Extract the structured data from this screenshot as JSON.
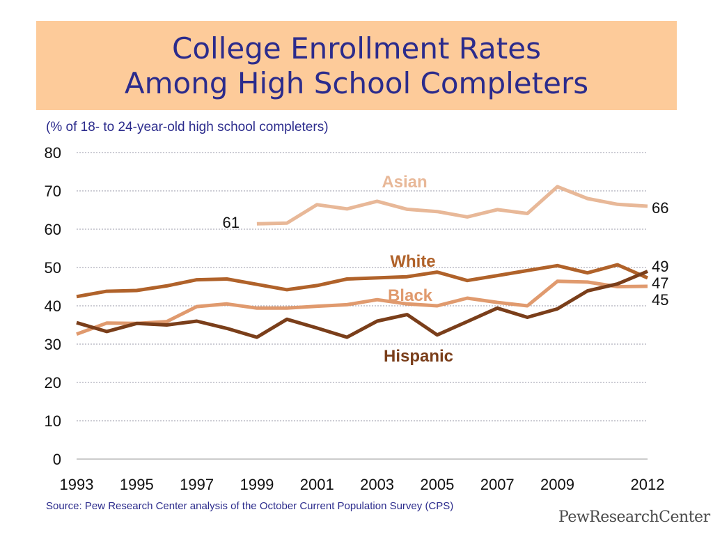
{
  "header": {
    "title_line1": "College Enrollment Rates",
    "title_line2": "Among High School Completers",
    "subtitle": "(% of 18- to 24-year-old high school completers)"
  },
  "footer": {
    "source": "Source: Pew Research Center analysis of the October Current Population Survey (CPS)",
    "logo": "PewResearchCenter"
  },
  "chart_data": {
    "type": "line",
    "x": [
      1993,
      1994,
      1995,
      1996,
      1997,
      1998,
      1999,
      2000,
      2001,
      2002,
      2003,
      2004,
      2005,
      2006,
      2007,
      2008,
      2009,
      2010,
      2011,
      2012
    ],
    "x_tick_labels": [
      {
        "x": 1993,
        "label": "1993"
      },
      {
        "x": 1995,
        "label": "1995"
      },
      {
        "x": 1997,
        "label": "1997"
      },
      {
        "x": 1999,
        "label": "1999"
      },
      {
        "x": 2001,
        "label": "2001"
      },
      {
        "x": 2003,
        "label": "2003"
      },
      {
        "x": 2005,
        "label": "2005"
      },
      {
        "x": 2007,
        "label": "2007"
      },
      {
        "x": 2009,
        "label": "2009"
      },
      {
        "x": 2012,
        "label": "2012"
      }
    ],
    "y_ticks": [
      0,
      10,
      20,
      30,
      40,
      50,
      60,
      70,
      80
    ],
    "ylim": [
      0,
      80
    ],
    "grid": true,
    "series": [
      {
        "name": "Asian",
        "color": "#e8b898",
        "values": [
          null,
          null,
          null,
          null,
          null,
          null,
          61.4,
          61.6,
          66.4,
          65.3,
          67.3,
          65.2,
          64.6,
          63.2,
          65.1,
          64.1,
          71.1,
          68.0,
          66.5,
          66.0
        ],
        "start_label": "61",
        "end_label": "66"
      },
      {
        "name": "White",
        "color": "#b0622a",
        "values": [
          42.4,
          43.8,
          44.0,
          45.2,
          46.8,
          47.0,
          45.6,
          44.2,
          45.3,
          47.0,
          47.3,
          47.6,
          48.8,
          46.6,
          47.9,
          49.2,
          50.5,
          48.6,
          50.7,
          47.3
        ],
        "end_label": "47"
      },
      {
        "name": "Black",
        "color": "#e09a6e",
        "values": [
          32.6,
          35.5,
          35.4,
          35.9,
          39.8,
          40.5,
          39.4,
          39.4,
          39.9,
          40.3,
          41.6,
          40.5,
          40.0,
          42.0,
          40.9,
          40.0,
          46.4,
          46.2,
          45.0,
          45.1
        ],
        "end_label": "45"
      },
      {
        "name": "Hispanic",
        "color": "#7a3e1a",
        "values": [
          35.6,
          33.3,
          35.4,
          35.0,
          36.0,
          34.1,
          31.8,
          36.5,
          34.2,
          31.8,
          36.0,
          37.7,
          32.4,
          35.9,
          39.4,
          37.0,
          39.2,
          43.9,
          45.7,
          49.0
        ],
        "end_label": "49"
      }
    ]
  }
}
